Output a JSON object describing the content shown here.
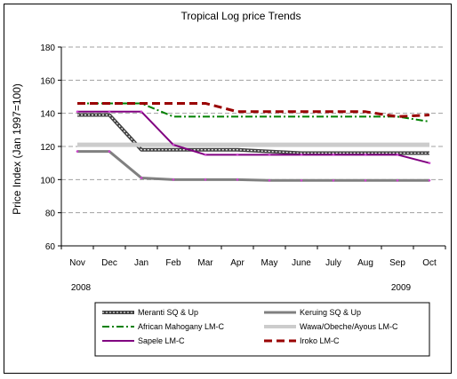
{
  "chart_data": {
    "type": "line",
    "title": "Tropical Log price Trends",
    "ylabel": "Price Index (Jan 1997=100)",
    "xlabel": "",
    "categories": [
      "Nov",
      "Dec",
      "Jan",
      "Feb",
      "Mar",
      "Apr",
      "May",
      "June",
      "July",
      "Aug",
      "Sep",
      "Oct"
    ],
    "year_labels": [
      {
        "label": "2008",
        "category": "Nov"
      },
      {
        "label": "2009",
        "category": "Sep"
      }
    ],
    "ylim": [
      60,
      180
    ],
    "yticks": [
      60,
      80,
      100,
      120,
      140,
      160,
      180
    ],
    "grid": true,
    "legend_placement": "bottom",
    "series": [
      {
        "name": "Meranti SQ & Up",
        "color": "#404040",
        "style": "checkered",
        "values": [
          139,
          139,
          118,
          118,
          118,
          118,
          117,
          116,
          116,
          116,
          116,
          116
        ]
      },
      {
        "name": "Keruing SQ & Up",
        "color": "#808080",
        "style": "solid",
        "values": [
          117,
          117,
          101,
          100,
          100,
          100,
          99.5,
          99.5,
          99.5,
          99.5,
          99.5,
          99.5
        ]
      },
      {
        "name": "African Mahogany LM-C",
        "color": "#008000",
        "style": "dashdot",
        "values": [
          146,
          146,
          146,
          138,
          138,
          138,
          138,
          138,
          138,
          138,
          138,
          135
        ]
      },
      {
        "name": "Wawa/Obeche/Ayous LM-C",
        "color": "#cccccc",
        "style": "solid",
        "values": [
          121,
          121,
          121,
          121,
          121,
          121,
          121,
          121,
          121,
          121,
          121,
          121
        ]
      },
      {
        "name": "Sapele LM-C",
        "color": "#800080",
        "style": "solid",
        "values": [
          141,
          141,
          141,
          121,
          115,
          115,
          115,
          115,
          115,
          115,
          115,
          110
        ]
      },
      {
        "name": "Iroko LM-C",
        "color": "#990000",
        "style": "dashed",
        "values": [
          146,
          146,
          146,
          146,
          146,
          141,
          141,
          141,
          141,
          141,
          138,
          139
        ]
      }
    ]
  }
}
